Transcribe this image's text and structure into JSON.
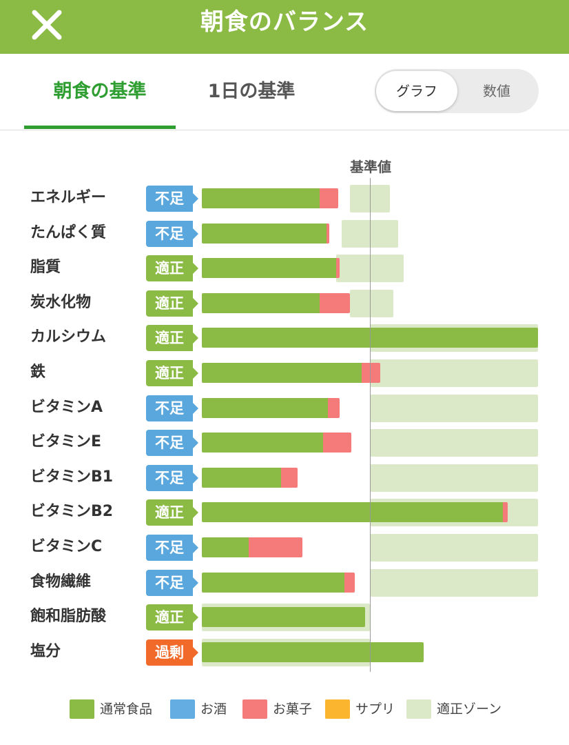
{
  "header": {
    "title": "朝食のバランス",
    "close_icon": "close-icon"
  },
  "tabs": [
    {
      "label": "朝食の基準",
      "selected": true
    },
    {
      "label": "1日の基準",
      "selected": false
    }
  ],
  "view_toggle": {
    "options": [
      {
        "label": "グラフ",
        "selected": true
      },
      {
        "label": "数値",
        "selected": false
      }
    ]
  },
  "colors": {
    "header_bg": "#8bbb44",
    "accent": "#2e9e31",
    "normal_food": "#8bbb44",
    "alcohol": "#64ade3",
    "snack": "#f57b7b",
    "supplement": "#fbb52e",
    "zone": "#dce9c8",
    "badge_lack": "#5aa7dd",
    "badge_ok": "#8bbb44",
    "badge_excess": "#f26a2a"
  },
  "chart_data": {
    "type": "bar",
    "reference_label": "基準値",
    "reference_value": 100,
    "unit": "% of reference",
    "x_range": [
      0,
      200
    ],
    "status_labels": {
      "lack": "不足",
      "ok": "適正",
      "excess": "過剰"
    },
    "nutrients": [
      {
        "name": "エネルギー",
        "status": "lack",
        "status_label": "不足",
        "normal": 70,
        "snack": 11,
        "zone": [
          88,
          112
        ]
      },
      {
        "name": "たんぱく質",
        "status": "lack",
        "status_label": "不足",
        "normal": 74,
        "snack": 2,
        "zone": [
          83,
          117
        ]
      },
      {
        "name": "脂質",
        "status": "ok",
        "status_label": "適正",
        "normal": 80,
        "snack": 2,
        "zone": [
          80,
          120
        ]
      },
      {
        "name": "炭水化物",
        "status": "ok",
        "status_label": "適正",
        "normal": 70,
        "snack": 18,
        "zone": [
          88,
          114
        ]
      },
      {
        "name": "カルシウム",
        "status": "ok",
        "status_label": "適正",
        "normal": 200,
        "snack": 0,
        "zone": [
          100,
          200
        ]
      },
      {
        "name": "鉄",
        "status": "ok",
        "status_label": "適正",
        "normal": 95,
        "snack": 11,
        "zone": [
          100,
          200
        ]
      },
      {
        "name": "ビタミンA",
        "status": "lack",
        "status_label": "不足",
        "normal": 75,
        "snack": 7,
        "zone": [
          100,
          200
        ]
      },
      {
        "name": "ビタミンE",
        "status": "lack",
        "status_label": "不足",
        "normal": 72,
        "snack": 17,
        "zone": [
          100,
          200
        ]
      },
      {
        "name": "ビタミンB1",
        "status": "lack",
        "status_label": "不足",
        "normal": 47,
        "snack": 10,
        "zone": [
          100,
          200
        ]
      },
      {
        "name": "ビタミンB2",
        "status": "ok",
        "status_label": "適正",
        "normal": 179,
        "snack": 3,
        "zone": [
          100,
          200
        ]
      },
      {
        "name": "ビタミンC",
        "status": "lack",
        "status_label": "不足",
        "normal": 28,
        "snack": 32,
        "zone": [
          100,
          200
        ]
      },
      {
        "name": "食物繊維",
        "status": "lack",
        "status_label": "不足",
        "normal": 85,
        "snack": 6,
        "zone": [
          100,
          200
        ]
      },
      {
        "name": "飽和脂肪酸",
        "status": "ok",
        "status_label": "適正",
        "normal": 97,
        "snack": 0,
        "zone": [
          0,
          100
        ]
      },
      {
        "name": "塩分",
        "status": "excess",
        "status_label": "過剰",
        "normal": 132,
        "snack": 0,
        "zone": [
          0,
          100
        ]
      }
    ]
  },
  "legend": [
    {
      "label": "通常食品",
      "color": "#8bbb44"
    },
    {
      "label": "お酒",
      "color": "#64ade3"
    },
    {
      "label": "お菓子",
      "color": "#f57b7b"
    },
    {
      "label": "サプリ",
      "color": "#fbb52e"
    },
    {
      "label": "適正ゾーン",
      "color": "#dce9c8"
    }
  ]
}
